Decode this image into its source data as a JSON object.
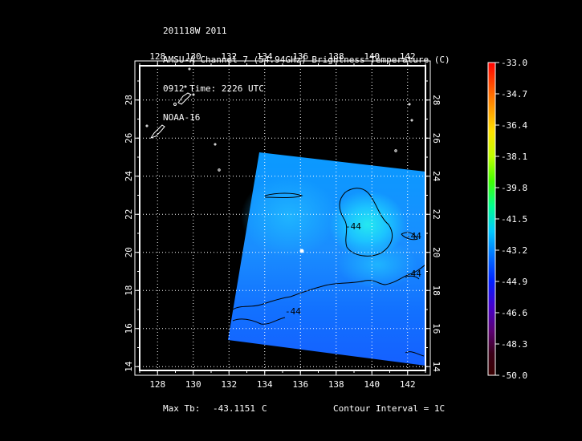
{
  "header": {
    "line1": "201118W 2011",
    "line2": "AMSU-A Channel 7 (54.94GHz) Brightness Temperature (C)",
    "line3": "0912 Time: 2226 UTC",
    "line4": "NOAA-16"
  },
  "map": {
    "lon_ticks": [
      "128",
      "130",
      "132",
      "134",
      "136",
      "138",
      "140",
      "142"
    ],
    "lat_ticks": [
      "14",
      "16",
      "18",
      "20",
      "22",
      "24",
      "26",
      "28"
    ],
    "lon_range": [
      127,
      143
    ],
    "lat_range": [
      13.8,
      29.8
    ],
    "contour_labels": [
      "-44",
      "-44",
      "-44",
      "-44"
    ],
    "colors": {
      "background": "#000000",
      "frame": "#ffffff",
      "grid": "#ffffff",
      "contour": "#000000"
    }
  },
  "colorbar": {
    "labels": [
      "-33.0",
      "-34.7",
      "-36.4",
      "-38.1",
      "-39.8",
      "-41.5",
      "-43.2",
      "-44.9",
      "-46.6",
      "-48.3",
      "-50.0"
    ],
    "range": [
      -50.0,
      -33.0
    ],
    "colors": [
      "#3a0000",
      "#5b0070",
      "#4600cc",
      "#0020ff",
      "#0070ff",
      "#00c8ff",
      "#00ff90",
      "#80ff00",
      "#ffe000",
      "#ff8000",
      "#ff0000"
    ]
  },
  "footer": {
    "max_label": "Max Tb:",
    "max_value": "-43.1151",
    "max_unit": "C",
    "contour_interval": "Contour Interval = 1C"
  }
}
